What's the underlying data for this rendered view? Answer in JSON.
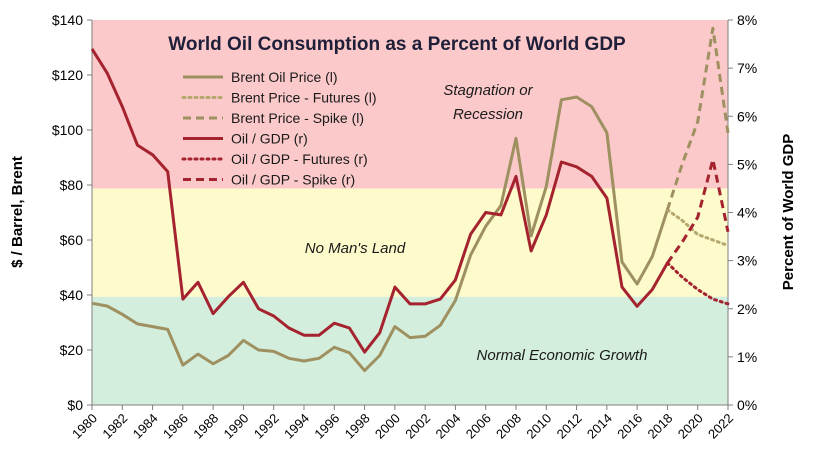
{
  "chart_data": {
    "type": "line",
    "title": "World Oil Consumption as a Percent of World GDP",
    "ylabel": "$ / Barrel, Brent",
    "y2label": "Percent of World GDP",
    "ylim": [
      0,
      140
    ],
    "y2lim": [
      0,
      8
    ],
    "xlim": [
      1980,
      2022
    ],
    "yticks": [
      "$0",
      "$20",
      "$40",
      "$60",
      "$80",
      "$100",
      "$120",
      "$140"
    ],
    "y2ticks": [
      "0%",
      "1%",
      "2%",
      "3%",
      "4%",
      "5%",
      "6%",
      "7%",
      "8%"
    ],
    "xticks": [
      "1980",
      "1982",
      "1984",
      "1986",
      "1988",
      "1990",
      "1992",
      "1994",
      "1996",
      "1998",
      "2000",
      "2002",
      "2004",
      "2006",
      "2008",
      "2010",
      "2012",
      "2014",
      "2016",
      "2018",
      "2020",
      "2022"
    ],
    "zones": [
      {
        "label": "Normal Economic Growth",
        "from_pct": 0,
        "to_pct": 2.25,
        "color": "#d4eedd"
      },
      {
        "label": "No Man's Land",
        "from_pct": 2.25,
        "to_pct": 4.5,
        "color": "#fdfacb"
      },
      {
        "label": "Stagnation or Recession",
        "from_pct": 4.5,
        "to_pct": 8,
        "color": "#fbc9c9"
      }
    ],
    "series": [
      {
        "name": "Brent Oil Price (l)",
        "axis": "left",
        "style": "solid",
        "color": "#9e9060",
        "x": [
          1980,
          1981,
          1982,
          1983,
          1984,
          1985,
          1986,
          1987,
          1988,
          1989,
          1990,
          1991,
          1992,
          1993,
          1994,
          1995,
          1996,
          1997,
          1998,
          1999,
          2000,
          2001,
          2002,
          2003,
          2004,
          2005,
          2006,
          2007,
          2008,
          2009,
          2010,
          2011,
          2012,
          2013,
          2014,
          2015,
          2016,
          2017,
          2018
        ],
        "values": [
          37,
          36,
          33,
          29.5,
          28.5,
          27.5,
          14.5,
          18.5,
          15,
          18,
          23.5,
          20,
          19.5,
          17,
          16,
          17,
          21,
          19,
          12.5,
          18,
          28.5,
          24.5,
          25,
          29,
          38,
          54.5,
          65,
          72.5,
          97,
          61.5,
          79.5,
          111,
          112,
          108.5,
          99,
          52,
          44,
          54,
          71
        ]
      },
      {
        "name": "Brent Price - Futures (l)",
        "axis": "left",
        "style": "dotted",
        "color": "#b4a870",
        "x": [
          2018,
          2019,
          2020,
          2021,
          2022
        ],
        "values": [
          71,
          67,
          62,
          60,
          58
        ]
      },
      {
        "name": "Brent Price - Spike (l)",
        "axis": "left",
        "style": "dashed",
        "color": "#9e9060",
        "x": [
          2018,
          2019,
          2020,
          2021,
          2022
        ],
        "values": [
          71,
          88,
          103,
          137,
          99
        ]
      },
      {
        "name": "Oil / GDP (r)",
        "axis": "right",
        "style": "solid",
        "color": "#a4232f",
        "x": [
          1980,
          1981,
          1982,
          1983,
          1984,
          1985,
          1986,
          1987,
          1988,
          1989,
          1990,
          1991,
          1992,
          1993,
          1994,
          1995,
          1996,
          1997,
          1998,
          1999,
          2000,
          2001,
          2002,
          2003,
          2004,
          2005,
          2006,
          2007,
          2008,
          2009,
          2010,
          2011,
          2012,
          2013,
          2014,
          2015,
          2016,
          2017,
          2018
        ],
        "values": [
          7.4,
          6.9,
          6.2,
          5.4,
          5.2,
          4.85,
          2.2,
          2.55,
          1.9,
          2.25,
          2.55,
          2.0,
          1.85,
          1.6,
          1.45,
          1.45,
          1.7,
          1.6,
          1.1,
          1.5,
          2.45,
          2.1,
          2.1,
          2.2,
          2.6,
          3.55,
          4.0,
          3.95,
          4.75,
          3.2,
          3.95,
          5.05,
          4.95,
          4.75,
          4.3,
          2.45,
          2.05,
          2.4,
          2.95
        ]
      },
      {
        "name": "Oil / GDP - Futures (r)",
        "axis": "right",
        "style": "dotted",
        "color": "#a4232f",
        "x": [
          2018,
          2019,
          2020,
          2021,
          2022
        ],
        "values": [
          2.95,
          2.65,
          2.4,
          2.2,
          2.1
        ]
      },
      {
        "name": "Oil / GDP - Spike (r)",
        "axis": "right",
        "style": "dashed",
        "color": "#a4232f",
        "x": [
          2018,
          2019,
          2020,
          2021,
          2022
        ],
        "values": [
          2.95,
          3.4,
          3.9,
          5.1,
          3.6
        ]
      }
    ]
  }
}
